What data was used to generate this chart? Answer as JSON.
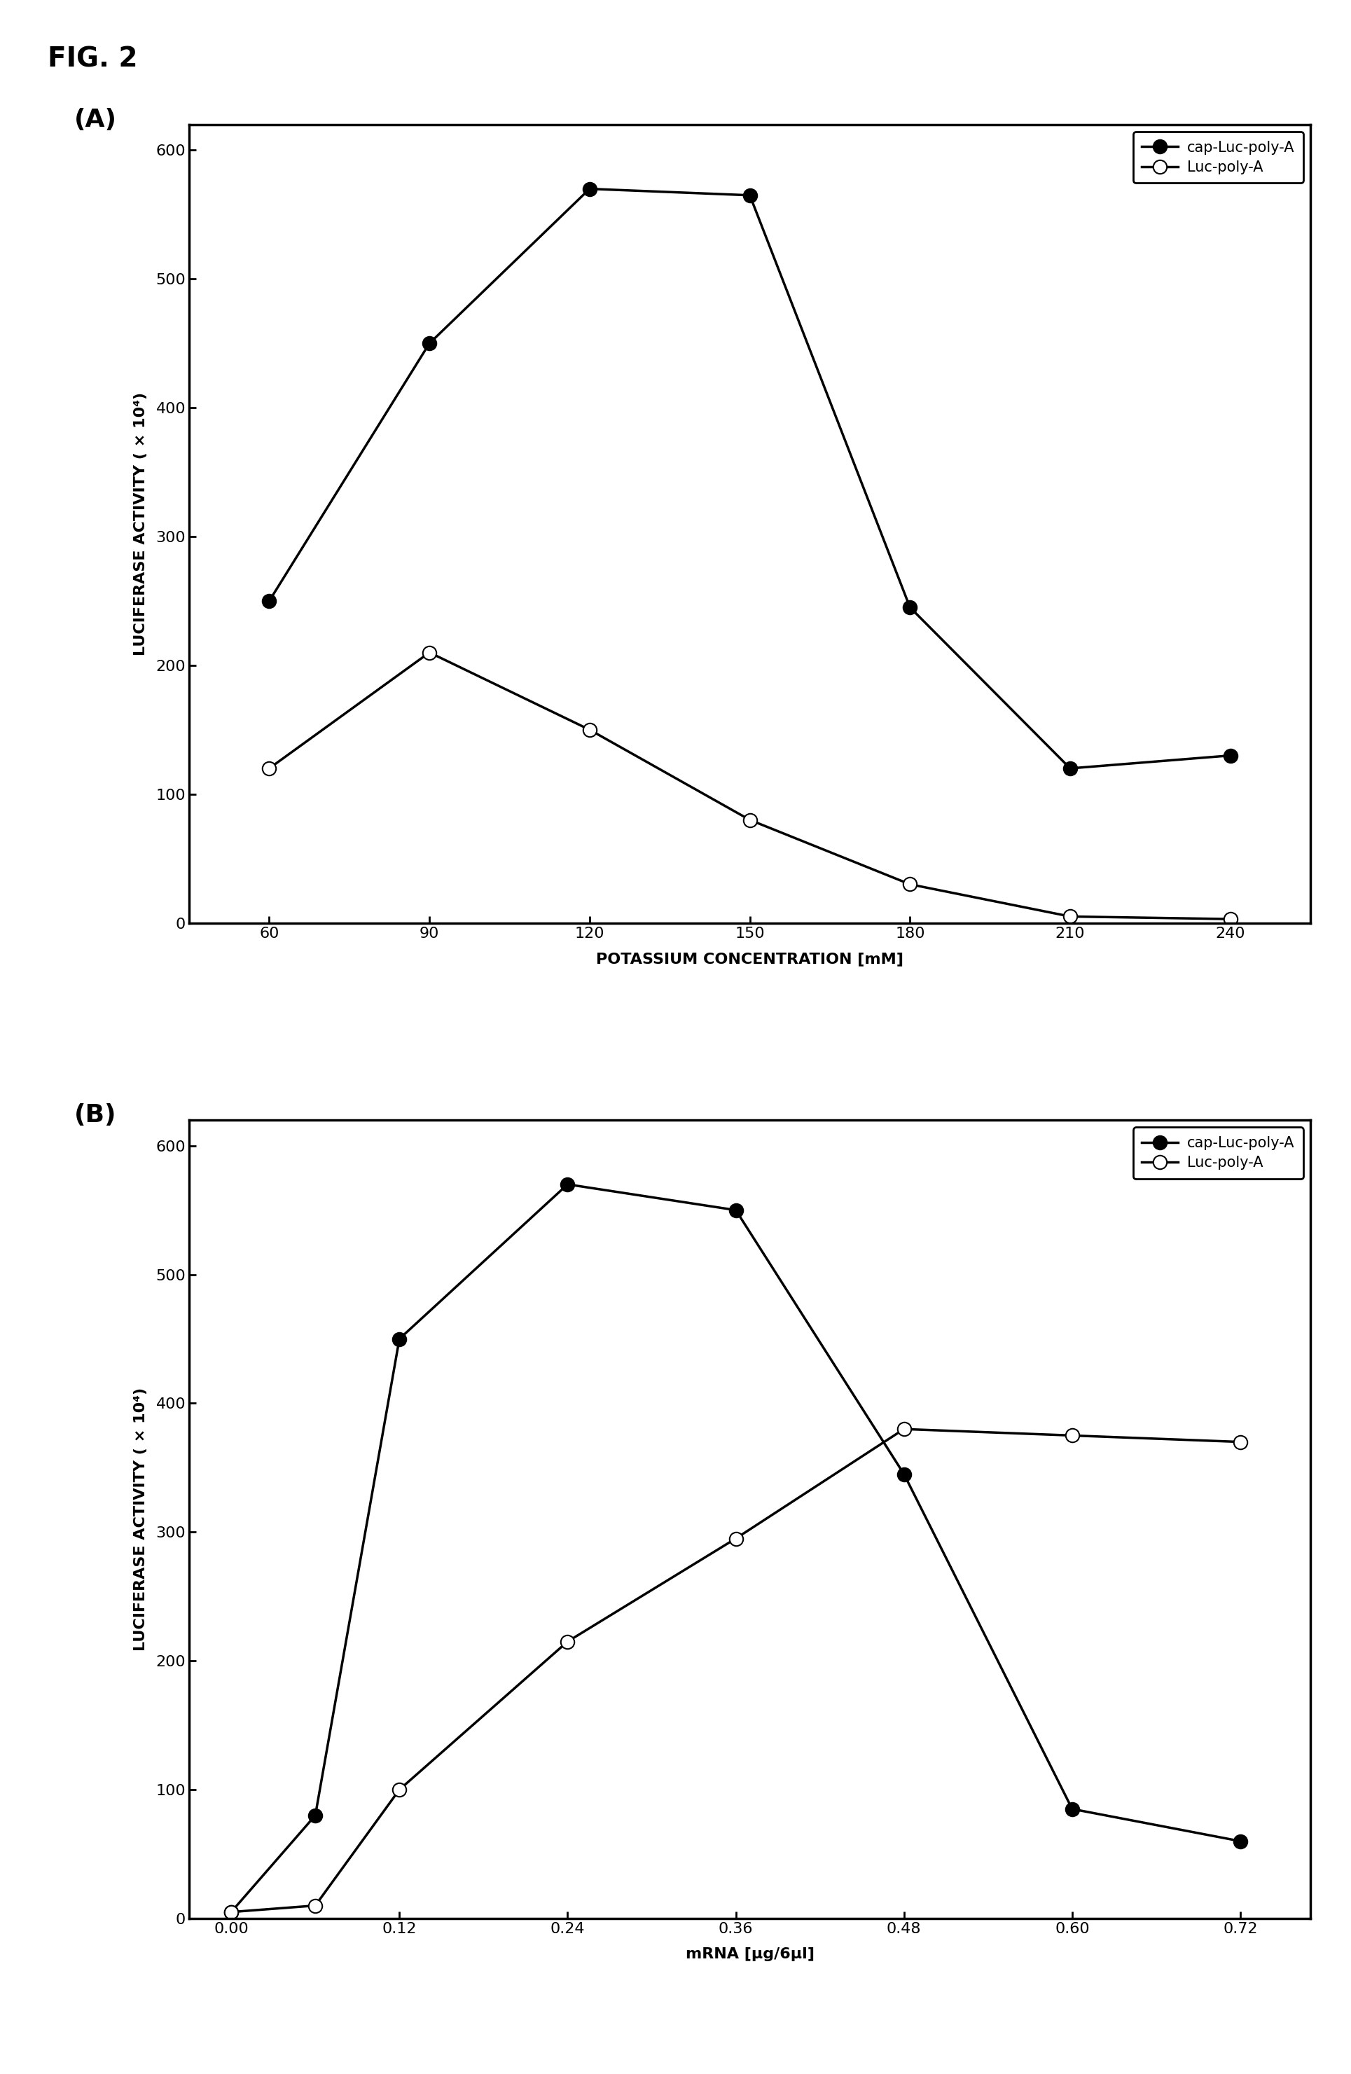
{
  "fig_label": "FIG. 2",
  "panel_A": {
    "label": "(A)",
    "x": [
      60,
      90,
      120,
      150,
      180,
      210,
      240
    ],
    "cap_luc_polyA": [
      250,
      450,
      570,
      565,
      245,
      120,
      130
    ],
    "luc_polyA": [
      120,
      210,
      150,
      80,
      30,
      5,
      3
    ],
    "xlabel": "POTASSIUM CONCENTRATION [mM]",
    "ylabel": "LUCIFERASE ACTIVITY ( × 10⁴)",
    "ylim": [
      0,
      620
    ],
    "yticks": [
      0,
      100,
      200,
      300,
      400,
      500,
      600
    ],
    "xlim": [
      45,
      255
    ],
    "xticks": [
      60,
      90,
      120,
      150,
      180,
      210,
      240
    ]
  },
  "panel_B": {
    "label": "(B)",
    "x": [
      0,
      0.06,
      0.12,
      0.24,
      0.36,
      0.48,
      0.6,
      0.72
    ],
    "cap_luc_polyA": [
      5,
      80,
      450,
      570,
      550,
      345,
      85,
      60
    ],
    "luc_polyA": [
      5,
      10,
      100,
      215,
      295,
      380,
      375,
      370
    ],
    "xlabel": "mRNA [μg/6μl]",
    "ylabel": "LUCIFERASE ACTIVITY ( × 10⁴)",
    "ylim": [
      0,
      620
    ],
    "yticks": [
      0,
      100,
      200,
      300,
      400,
      500,
      600
    ],
    "xlim": [
      -0.03,
      0.77
    ],
    "xticks": [
      0,
      0.12,
      0.24,
      0.36,
      0.48,
      0.6,
      0.72
    ]
  },
  "legend_cap": "cap-Luc-poly-A",
  "legend_luc": "Luc-poly-A",
  "line_color": "#000000",
  "cap_markerfacecolor": "#000000",
  "luc_markerfacecolor": "#ffffff",
  "markersize": 14,
  "linewidth": 2.5,
  "fig_label_fontsize": 28,
  "panel_label_fontsize": 26,
  "axis_label_fontsize": 16,
  "tick_fontsize": 16,
  "legend_fontsize": 15
}
